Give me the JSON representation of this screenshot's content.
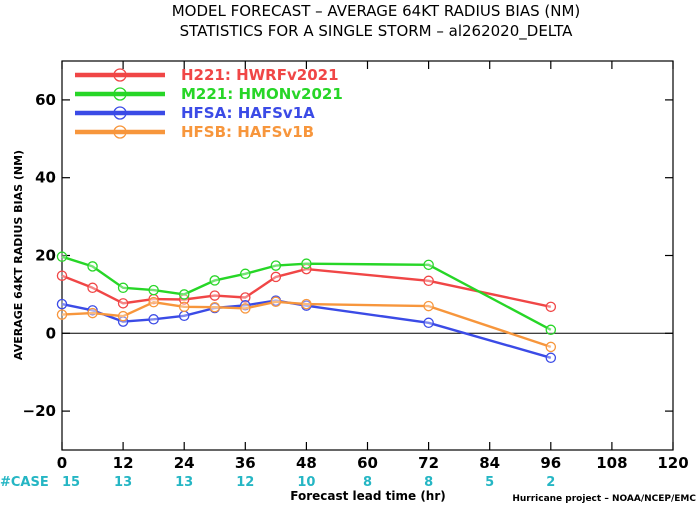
{
  "header": {
    "title_line1": "MODEL FORECAST – AVERAGE 64KT RADIUS BIAS (NM)",
    "title_line2": "STATISTICS FOR A SINGLE STORM – al262020_DELTA"
  },
  "footer": {
    "credit": "Hurricane project – NOAA/NCEP/EMC",
    "case_label": "#CASE"
  },
  "chart_data": {
    "type": "line",
    "xlabel": "Forecast lead time (hr)",
    "ylabel": "AVERAGE 64KT RADIUS BIAS (NM)",
    "xlim": [
      0,
      120
    ],
    "ylim": [
      -30,
      70
    ],
    "x_ticks": [
      0,
      12,
      24,
      36,
      48,
      60,
      72,
      84,
      96,
      108,
      120
    ],
    "y_ticks": [
      -20,
      0,
      20,
      40,
      60
    ],
    "zero_line": true,
    "grid": false,
    "legend_position": "top-left",
    "case_counts": [
      {
        "x": 0,
        "label": "15"
      },
      {
        "x": 12,
        "label": "13"
      },
      {
        "x": 24,
        "label": "13"
      },
      {
        "x": 36,
        "label": "12"
      },
      {
        "x": 48,
        "label": "10"
      },
      {
        "x": 60,
        "label": "8"
      },
      {
        "x": 72,
        "label": "8"
      },
      {
        "x": 84,
        "label": "5"
      },
      {
        "x": 96,
        "label": "2"
      }
    ],
    "series": [
      {
        "name": "H221: HWRFv2021",
        "color": "#f04646",
        "x": [
          0,
          6,
          12,
          18,
          24,
          30,
          36,
          42,
          48,
          72,
          96
        ],
        "values": [
          14.8,
          11.7,
          7.7,
          8.8,
          8.7,
          9.7,
          9.2,
          14.5,
          16.5,
          13.5,
          6.8
        ]
      },
      {
        "name": "M221: HMONv2021",
        "color": "#27d627",
        "x": [
          0,
          6,
          12,
          18,
          24,
          30,
          36,
          42,
          48,
          72,
          96
        ],
        "values": [
          19.7,
          17.2,
          11.7,
          11.1,
          10.0,
          13.6,
          15.3,
          17.4,
          17.9,
          17.6,
          0.9
        ]
      },
      {
        "name": "HFSA: HAFSv1A",
        "color": "#3b4be6",
        "x": [
          0,
          6,
          12,
          18,
          24,
          30,
          36,
          42,
          48,
          72,
          96
        ],
        "values": [
          7.5,
          5.9,
          3.0,
          3.6,
          4.5,
          6.5,
          7.2,
          8.4,
          7.1,
          2.7,
          -6.3
        ]
      },
      {
        "name": "HFSB: HAFSv1B",
        "color": "#f7963c",
        "x": [
          0,
          6,
          12,
          18,
          24,
          30,
          36,
          42,
          48,
          72,
          96
        ],
        "values": [
          4.8,
          5.2,
          4.4,
          8.0,
          6.8,
          6.7,
          6.4,
          8.1,
          7.5,
          7.0,
          -3.5
        ]
      }
    ]
  }
}
